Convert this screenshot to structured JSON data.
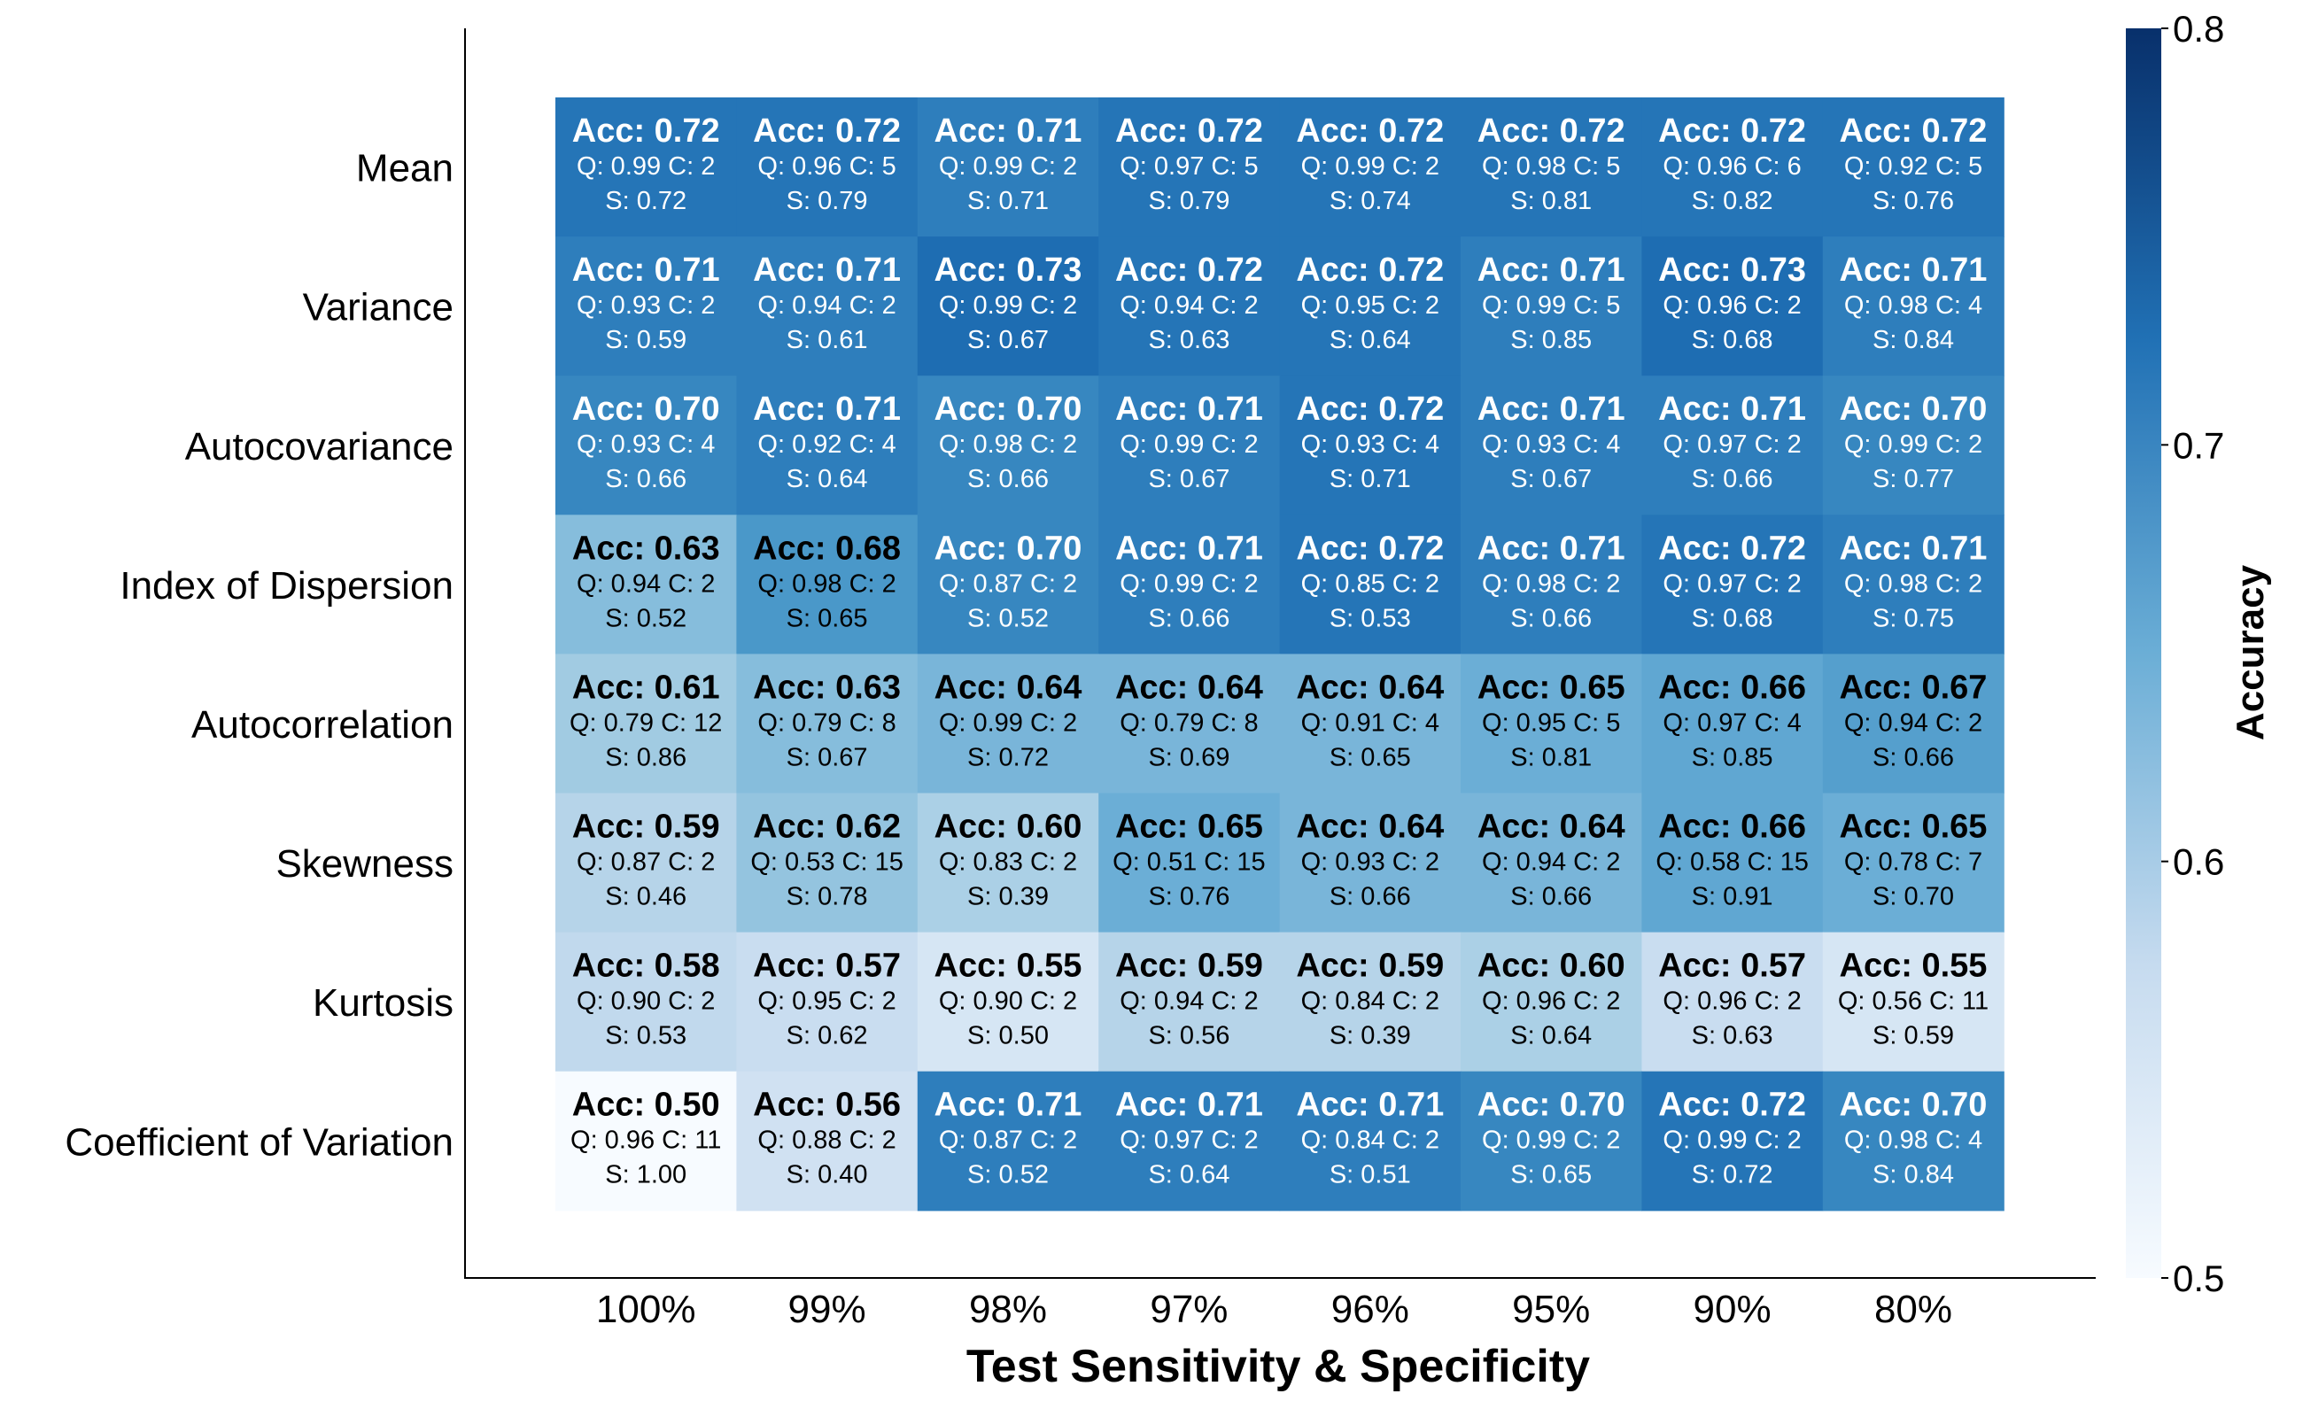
{
  "chart_data": {
    "type": "heatmap",
    "title": "",
    "xlabel": "Test Sensitivity & Specificity",
    "ylabel": "",
    "x_categories": [
      "100%",
      "99%",
      "98%",
      "97%",
      "96%",
      "95%",
      "90%",
      "80%"
    ],
    "y_categories": [
      "Mean",
      "Variance",
      "Autocovariance",
      "Index of Dispersion",
      "Autocorrelation",
      "Skewness",
      "Kurtosis",
      "Coefficient of Variation"
    ],
    "cells": [
      [
        {
          "acc": "0.72",
          "q": "0.99",
          "c": "2",
          "s": "0.72"
        },
        {
          "acc": "0.72",
          "q": "0.96",
          "c": "5",
          "s": "0.79"
        },
        {
          "acc": "0.71",
          "q": "0.99",
          "c": "2",
          "s": "0.71"
        },
        {
          "acc": "0.72",
          "q": "0.97",
          "c": "5",
          "s": "0.79"
        },
        {
          "acc": "0.72",
          "q": "0.99",
          "c": "2",
          "s": "0.74"
        },
        {
          "acc": "0.72",
          "q": "0.98",
          "c": "5",
          "s": "0.81"
        },
        {
          "acc": "0.72",
          "q": "0.96",
          "c": "6",
          "s": "0.82"
        },
        {
          "acc": "0.72",
          "q": "0.92",
          "c": "5",
          "s": "0.76"
        }
      ],
      [
        {
          "acc": "0.71",
          "q": "0.93",
          "c": "2",
          "s": "0.59"
        },
        {
          "acc": "0.71",
          "q": "0.94",
          "c": "2",
          "s": "0.61"
        },
        {
          "acc": "0.73",
          "q": "0.99",
          "c": "2",
          "s": "0.67"
        },
        {
          "acc": "0.72",
          "q": "0.94",
          "c": "2",
          "s": "0.63"
        },
        {
          "acc": "0.72",
          "q": "0.95",
          "c": "2",
          "s": "0.64"
        },
        {
          "acc": "0.71",
          "q": "0.99",
          "c": "5",
          "s": "0.85"
        },
        {
          "acc": "0.73",
          "q": "0.96",
          "c": "2",
          "s": "0.68"
        },
        {
          "acc": "0.71",
          "q": "0.98",
          "c": "4",
          "s": "0.84"
        }
      ],
      [
        {
          "acc": "0.70",
          "q": "0.93",
          "c": "4",
          "s": "0.66"
        },
        {
          "acc": "0.71",
          "q": "0.92",
          "c": "4",
          "s": "0.64"
        },
        {
          "acc": "0.70",
          "q": "0.98",
          "c": "2",
          "s": "0.66"
        },
        {
          "acc": "0.71",
          "q": "0.99",
          "c": "2",
          "s": "0.67"
        },
        {
          "acc": "0.72",
          "q": "0.93",
          "c": "4",
          "s": "0.71"
        },
        {
          "acc": "0.71",
          "q": "0.93",
          "c": "4",
          "s": "0.67"
        },
        {
          "acc": "0.71",
          "q": "0.97",
          "c": "2",
          "s": "0.66"
        },
        {
          "acc": "0.70",
          "q": "0.99",
          "c": "2",
          "s": "0.77"
        }
      ],
      [
        {
          "acc": "0.63",
          "q": "0.94",
          "c": "2",
          "s": "0.52"
        },
        {
          "acc": "0.68",
          "q": "0.98",
          "c": "2",
          "s": "0.65"
        },
        {
          "acc": "0.70",
          "q": "0.87",
          "c": "2",
          "s": "0.52"
        },
        {
          "acc": "0.71",
          "q": "0.99",
          "c": "2",
          "s": "0.66"
        },
        {
          "acc": "0.72",
          "q": "0.85",
          "c": "2",
          "s": "0.53"
        },
        {
          "acc": "0.71",
          "q": "0.98",
          "c": "2",
          "s": "0.66"
        },
        {
          "acc": "0.72",
          "q": "0.97",
          "c": "2",
          "s": "0.68"
        },
        {
          "acc": "0.71",
          "q": "0.98",
          "c": "2",
          "s": "0.75"
        }
      ],
      [
        {
          "acc": "0.61",
          "q": "0.79",
          "c": "12",
          "s": "0.86"
        },
        {
          "acc": "0.63",
          "q": "0.79",
          "c": "8",
          "s": "0.67"
        },
        {
          "acc": "0.64",
          "q": "0.99",
          "c": "2",
          "s": "0.72"
        },
        {
          "acc": "0.64",
          "q": "0.79",
          "c": "8",
          "s": "0.69"
        },
        {
          "acc": "0.64",
          "q": "0.91",
          "c": "4",
          "s": "0.65"
        },
        {
          "acc": "0.65",
          "q": "0.95",
          "c": "5",
          "s": "0.81"
        },
        {
          "acc": "0.66",
          "q": "0.97",
          "c": "4",
          "s": "0.85"
        },
        {
          "acc": "0.67",
          "q": "0.94",
          "c": "2",
          "s": "0.66"
        }
      ],
      [
        {
          "acc": "0.59",
          "q": "0.87",
          "c": "2",
          "s": "0.46"
        },
        {
          "acc": "0.62",
          "q": "0.53",
          "c": "15",
          "s": "0.78"
        },
        {
          "acc": "0.60",
          "q": "0.83",
          "c": "2",
          "s": "0.39"
        },
        {
          "acc": "0.65",
          "q": "0.51",
          "c": "15",
          "s": "0.76"
        },
        {
          "acc": "0.64",
          "q": "0.93",
          "c": "2",
          "s": "0.66"
        },
        {
          "acc": "0.64",
          "q": "0.94",
          "c": "2",
          "s": "0.66"
        },
        {
          "acc": "0.66",
          "q": "0.58",
          "c": "15",
          "s": "0.91"
        },
        {
          "acc": "0.65",
          "q": "0.78",
          "c": "7",
          "s": "0.70"
        }
      ],
      [
        {
          "acc": "0.58",
          "q": "0.90",
          "c": "2",
          "s": "0.53"
        },
        {
          "acc": "0.57",
          "q": "0.95",
          "c": "2",
          "s": "0.62"
        },
        {
          "acc": "0.55",
          "q": "0.90",
          "c": "2",
          "s": "0.50"
        },
        {
          "acc": "0.59",
          "q": "0.94",
          "c": "2",
          "s": "0.56"
        },
        {
          "acc": "0.59",
          "q": "0.84",
          "c": "2",
          "s": "0.39"
        },
        {
          "acc": "0.60",
          "q": "0.96",
          "c": "2",
          "s": "0.64"
        },
        {
          "acc": "0.57",
          "q": "0.96",
          "c": "2",
          "s": "0.63"
        },
        {
          "acc": "0.55",
          "q": "0.56",
          "c": "11",
          "s": "0.59"
        }
      ],
      [
        {
          "acc": "0.50",
          "q": "0.96",
          "c": "11",
          "s": "1.00"
        },
        {
          "acc": "0.56",
          "q": "0.88",
          "c": "2",
          "s": "0.40"
        },
        {
          "acc": "0.71",
          "q": "0.87",
          "c": "2",
          "s": "0.52"
        },
        {
          "acc": "0.71",
          "q": "0.97",
          "c": "2",
          "s": "0.64"
        },
        {
          "acc": "0.71",
          "q": "0.84",
          "c": "2",
          "s": "0.51"
        },
        {
          "acc": "0.70",
          "q": "0.99",
          "c": "2",
          "s": "0.65"
        },
        {
          "acc": "0.72",
          "q": "0.99",
          "c": "2",
          "s": "0.72"
        },
        {
          "acc": "0.70",
          "q": "0.98",
          "c": "4",
          "s": "0.84"
        }
      ]
    ],
    "cell_label_prefixes": {
      "acc": "Acc: ",
      "q": "Q: ",
      "c": " C: ",
      "s": "S: "
    },
    "colorbar": {
      "label": "Accuracy",
      "range": [
        0.5,
        0.8
      ],
      "ticks": [
        "0.5",
        "0.6",
        "0.7",
        "0.8"
      ],
      "colormap": "Blues",
      "color_low": "#f7fbff",
      "color_high": "#08306b"
    },
    "grid": false,
    "legend": "none"
  }
}
